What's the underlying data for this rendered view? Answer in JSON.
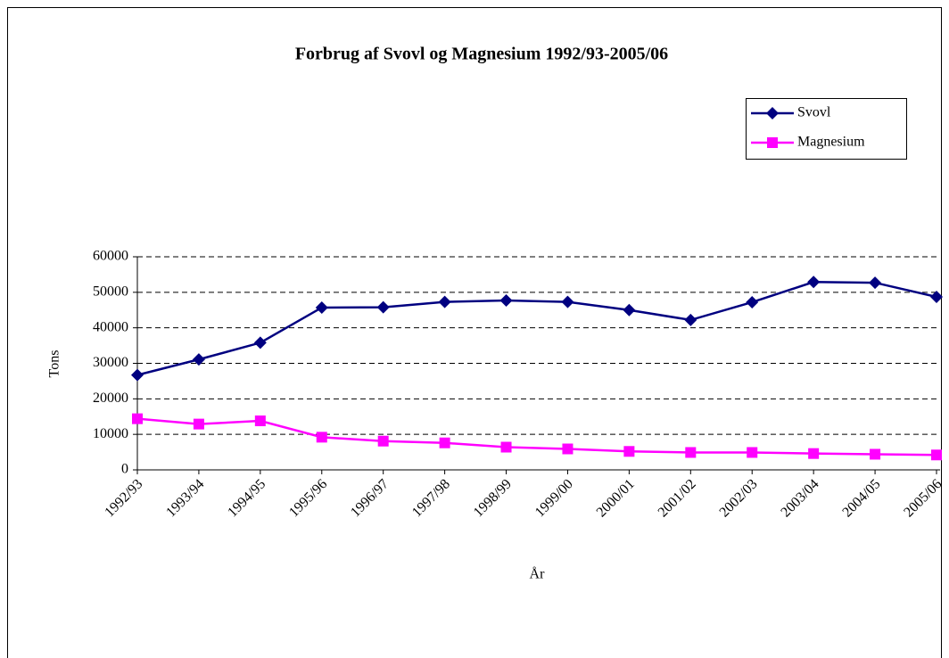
{
  "chart_data": {
    "type": "line",
    "title": "Forbrug af Svovl og Magnesium 1992/93-2005/06",
    "x_label": "År",
    "y_label": "Tons",
    "categories": [
      "1992/93",
      "1993/94",
      "1994/95",
      "1995/96",
      "1996/97",
      "1997/98",
      "1998/99",
      "1999/00",
      "2000/01",
      "2001/02",
      "2002/03",
      "2003/04",
      "2004/05",
      "2005/06"
    ],
    "series": [
      {
        "name": "Svovl",
        "color": "#000080",
        "marker": "diamond",
        "values": [
          26700,
          31100,
          35800,
          45700,
          45800,
          47300,
          47700,
          47300,
          45000,
          42200,
          47200,
          52900,
          52700,
          48700
        ]
      },
      {
        "name": "Magnesium",
        "color": "#ff00ff",
        "marker": "square",
        "values": [
          14400,
          12900,
          13800,
          9200,
          8100,
          7600,
          6400,
          5900,
          5200,
          4900,
          4900,
          4600,
          4400,
          4200
        ]
      }
    ],
    "ylim": [
      0,
      60000
    ],
    "yticks": [
      0,
      10000,
      20000,
      30000,
      40000,
      50000,
      60000
    ],
    "grid": true,
    "legend": "top-right"
  }
}
